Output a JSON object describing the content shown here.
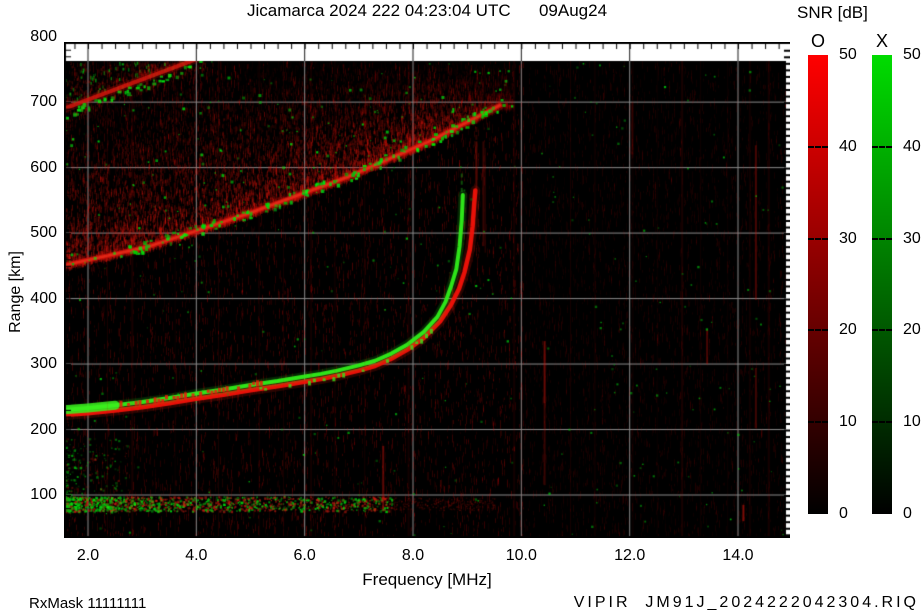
{
  "title": "Jicamarca 2024 222 04:23:04 UTC      09Aug24",
  "colorbar": {
    "title": "SNR [dB]",
    "o_label": "O",
    "x_label": "X",
    "o_color_top": "#ff0000",
    "x_color_top": "#00dc00",
    "color_bottom": "#000000",
    "tick_labels": [
      "50",
      "40",
      "30",
      "20",
      "10",
      "0"
    ],
    "tick_values": [
      50,
      40,
      30,
      20,
      10,
      0
    ],
    "min": 0,
    "max": 50
  },
  "axes": {
    "x": {
      "label": "Frequency [MHz]",
      "tick_labels": [
        "2.0",
        "4.0",
        "6.0",
        "8.0",
        "10.0",
        "12.0",
        "14.0"
      ],
      "tick_values": [
        2,
        4,
        6,
        8,
        10,
        12,
        14
      ],
      "range": [
        1.56,
        14.96
      ]
    },
    "y": {
      "label": "Range [km]",
      "tick_labels": [
        "800",
        "700",
        "600",
        "500",
        "400",
        "300",
        "200",
        "100"
      ],
      "tick_values": [
        800,
        700,
        600,
        500,
        400,
        300,
        200,
        100
      ],
      "range": [
        36,
        790
      ]
    }
  },
  "footer": {
    "left": "RxMask 11111111",
    "right": "VIPIR  JM91J_2024222042304.RIQ"
  },
  "chart_data": {
    "type": "heatmap",
    "description": "HF ionogram: echo SNR versus sounding frequency and virtual range; O-mode echoes red, X-mode echoes green on black background",
    "x_axis": {
      "label": "Frequency [MHz]",
      "range": [
        1.56,
        14.96
      ],
      "ticks": [
        2,
        4,
        6,
        8,
        10,
        12,
        14
      ]
    },
    "y_axis": {
      "label": "Range [km]",
      "range": [
        36,
        790
      ],
      "ticks": [
        100,
        200,
        300,
        400,
        500,
        600,
        700,
        800
      ]
    },
    "snr_scale_dB": {
      "min": 0,
      "max": 50,
      "ticks": [
        0,
        10,
        20,
        30,
        40,
        50
      ]
    },
    "grid": true,
    "traces": {
      "o_mode": {
        "color": "#f21208",
        "critical_frequency_MHz": 9.15,
        "points": [
          [
            1.56,
            222
          ],
          [
            2.0,
            225
          ],
          [
            2.5,
            229
          ],
          [
            3.0,
            234
          ],
          [
            3.5,
            240
          ],
          [
            4.0,
            247
          ],
          [
            4.5,
            253
          ],
          [
            5.0,
            260
          ],
          [
            5.5,
            266
          ],
          [
            6.0,
            273
          ],
          [
            6.3,
            277
          ],
          [
            6.6,
            282
          ],
          [
            7.0,
            290
          ],
          [
            7.3,
            297
          ],
          [
            7.6,
            308
          ],
          [
            7.9,
            322
          ],
          [
            8.2,
            340
          ],
          [
            8.5,
            365
          ],
          [
            8.7,
            390
          ],
          [
            8.85,
            415
          ],
          [
            8.95,
            440
          ],
          [
            9.05,
            475
          ],
          [
            9.1,
            510
          ],
          [
            9.13,
            545
          ],
          [
            9.15,
            565
          ]
        ]
      },
      "x_mode": {
        "color": "#30ee1a",
        "critical_frequency_MHz": 8.9,
        "points": [
          [
            1.56,
            230
          ],
          [
            2.0,
            233
          ],
          [
            2.5,
            237
          ],
          [
            3.0,
            242
          ],
          [
            3.5,
            248
          ],
          [
            4.0,
            255
          ],
          [
            4.5,
            261
          ],
          [
            5.0,
            268
          ],
          [
            5.5,
            274
          ],
          [
            6.0,
            281
          ],
          [
            6.3,
            285
          ],
          [
            6.6,
            290
          ],
          [
            7.0,
            298
          ],
          [
            7.3,
            305
          ],
          [
            7.6,
            316
          ],
          [
            7.9,
            330
          ],
          [
            8.2,
            349
          ],
          [
            8.45,
            372
          ],
          [
            8.6,
            395
          ],
          [
            8.7,
            418
          ],
          [
            8.8,
            445
          ],
          [
            8.86,
            480
          ],
          [
            8.9,
            520
          ],
          [
            8.92,
            558
          ]
        ]
      }
    },
    "f_layer_min_virtual_height_km": 222,
    "e_region_band": {
      "freq_MHz": [
        1.56,
        7.6
      ],
      "range_km": [
        82,
        95
      ]
    },
    "spread_f": {
      "upper_band": {
        "edge_km": [
          [
            1.56,
            690
          ],
          [
            4.3,
            775
          ]
        ]
      },
      "diffuse_band": {
        "lower_edge_km": [
          [
            1.56,
            451
          ],
          [
            3.1,
            479
          ],
          [
            5.0,
            531
          ],
          [
            6.8,
            586
          ],
          [
            8.3,
            640
          ],
          [
            9.6,
            695
          ]
        ]
      }
    },
    "rfi_streaks": {
      "partial": [
        {
          "f": 7.45,
          "r0": 75,
          "r1": 175,
          "a": 0.45
        },
        {
          "f": 10.43,
          "r0": 115,
          "r1": 240,
          "a": 0.25
        },
        {
          "f": 10.43,
          "r0": 240,
          "r1": 335,
          "a": 0.5
        },
        {
          "f": 13.43,
          "r0": 300,
          "r1": 352,
          "a": 0.35
        },
        {
          "f": 14.33,
          "r0": 398,
          "r1": 634,
          "a": 0.35
        },
        {
          "f": 14.33,
          "r0": 202,
          "r1": 294,
          "a": 0.3
        },
        {
          "f": 12.05,
          "r0": 620,
          "r1": 700,
          "a": 0.2
        },
        {
          "f": 9.3,
          "r0": 480,
          "r1": 640,
          "a": 0.25
        },
        {
          "f": 14.1,
          "r0": 60,
          "r1": 85,
          "a": 0.6
        }
      ],
      "faint_freqs": [
        2.35,
        2.8,
        3.6,
        4.4,
        5.15,
        5.6,
        6.1,
        6.55,
        7.1,
        7.9,
        9.85,
        10.0,
        10.9,
        11.35,
        12.05,
        12.5,
        12.95,
        13.3,
        13.8,
        14.2,
        14.55
      ]
    }
  }
}
